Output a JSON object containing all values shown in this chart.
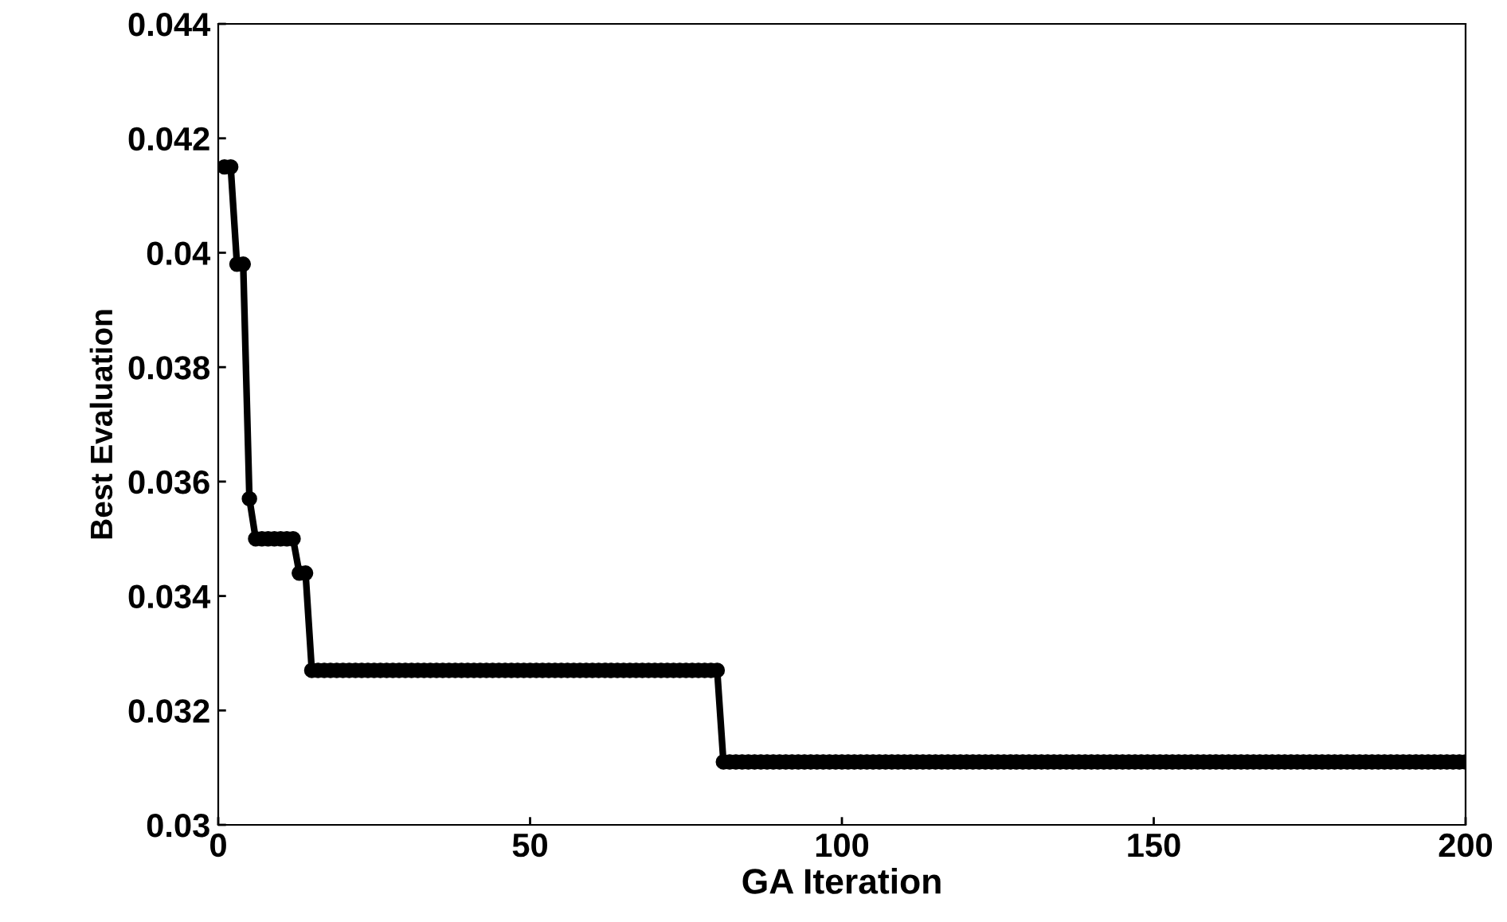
{
  "chart_data": {
    "type": "line",
    "xlabel": "GA Iteration",
    "ylabel": "Best Evaluation",
    "xlim": [
      0,
      200
    ],
    "xticks": [
      0,
      50,
      100,
      150,
      200
    ],
    "ylim": [
      0.03,
      0.044
    ],
    "yticks": [
      0.03,
      0.032,
      0.034,
      0.036,
      0.038,
      0.04,
      0.042,
      0.044
    ],
    "grid": false,
    "legend": false,
    "marker": "circle",
    "line_style": "solid",
    "series": [
      {
        "color": "#000000",
        "x": [
          1,
          2,
          3,
          4,
          5,
          6,
          7,
          8,
          9,
          10,
          11,
          12,
          13,
          14,
          15,
          16,
          17,
          18,
          19,
          20,
          21,
          22,
          23,
          24,
          25,
          26,
          27,
          28,
          29,
          30,
          31,
          32,
          33,
          34,
          35,
          36,
          37,
          38,
          39,
          40,
          41,
          42,
          43,
          44,
          45,
          46,
          47,
          48,
          49,
          50,
          51,
          52,
          53,
          54,
          55,
          56,
          57,
          58,
          59,
          60,
          61,
          62,
          63,
          64,
          65,
          66,
          67,
          68,
          69,
          70,
          71,
          72,
          73,
          74,
          75,
          76,
          77,
          78,
          79,
          80,
          81,
          82,
          83,
          84,
          85,
          86,
          87,
          88,
          89,
          90,
          91,
          92,
          93,
          94,
          95,
          96,
          97,
          98,
          99,
          100,
          101,
          102,
          103,
          104,
          105,
          106,
          107,
          108,
          109,
          110,
          111,
          112,
          113,
          114,
          115,
          116,
          117,
          118,
          119,
          120,
          121,
          122,
          123,
          124,
          125,
          126,
          127,
          128,
          129,
          130,
          131,
          132,
          133,
          134,
          135,
          136,
          137,
          138,
          139,
          140,
          141,
          142,
          143,
          144,
          145,
          146,
          147,
          148,
          149,
          150,
          151,
          152,
          153,
          154,
          155,
          156,
          157,
          158,
          159,
          160,
          161,
          162,
          163,
          164,
          165,
          166,
          167,
          168,
          169,
          170,
          171,
          172,
          173,
          174,
          175,
          176,
          177,
          178,
          179,
          180,
          181,
          182,
          183,
          184,
          185,
          186,
          187,
          188,
          189,
          190,
          191,
          192,
          193,
          194,
          195,
          196,
          197,
          198,
          199,
          200
        ],
        "values": [
          0.0415,
          0.0415,
          0.0398,
          0.0398,
          0.0357,
          0.035,
          0.035,
          0.035,
          0.035,
          0.035,
          0.035,
          0.035,
          0.0344,
          0.0344,
          0.0327,
          0.0327,
          0.0327,
          0.0327,
          0.0327,
          0.0327,
          0.0327,
          0.0327,
          0.0327,
          0.0327,
          0.0327,
          0.0327,
          0.0327,
          0.0327,
          0.0327,
          0.0327,
          0.0327,
          0.0327,
          0.0327,
          0.0327,
          0.0327,
          0.0327,
          0.0327,
          0.0327,
          0.0327,
          0.0327,
          0.0327,
          0.0327,
          0.0327,
          0.0327,
          0.0327,
          0.0327,
          0.0327,
          0.0327,
          0.0327,
          0.0327,
          0.0327,
          0.0327,
          0.0327,
          0.0327,
          0.0327,
          0.0327,
          0.0327,
          0.0327,
          0.0327,
          0.0327,
          0.0327,
          0.0327,
          0.0327,
          0.0327,
          0.0327,
          0.0327,
          0.0327,
          0.0327,
          0.0327,
          0.0327,
          0.0327,
          0.0327,
          0.0327,
          0.0327,
          0.0327,
          0.0327,
          0.0327,
          0.0327,
          0.0327,
          0.0327,
          0.0311,
          0.0311,
          0.0311,
          0.0311,
          0.0311,
          0.0311,
          0.0311,
          0.0311,
          0.0311,
          0.0311,
          0.0311,
          0.0311,
          0.0311,
          0.0311,
          0.0311,
          0.0311,
          0.0311,
          0.0311,
          0.0311,
          0.0311,
          0.0311,
          0.0311,
          0.0311,
          0.0311,
          0.0311,
          0.0311,
          0.0311,
          0.0311,
          0.0311,
          0.0311,
          0.0311,
          0.0311,
          0.0311,
          0.0311,
          0.0311,
          0.0311,
          0.0311,
          0.0311,
          0.0311,
          0.0311,
          0.0311,
          0.0311,
          0.0311,
          0.0311,
          0.0311,
          0.0311,
          0.0311,
          0.0311,
          0.0311,
          0.0311,
          0.0311,
          0.0311,
          0.0311,
          0.0311,
          0.0311,
          0.0311,
          0.0311,
          0.0311,
          0.0311,
          0.0311,
          0.0311,
          0.0311,
          0.0311,
          0.0311,
          0.0311,
          0.0311,
          0.0311,
          0.0311,
          0.0311,
          0.0311,
          0.0311,
          0.0311,
          0.0311,
          0.0311,
          0.0311,
          0.0311,
          0.0311,
          0.0311,
          0.0311,
          0.0311,
          0.0311,
          0.0311,
          0.0311,
          0.0311,
          0.0311,
          0.0311,
          0.0311,
          0.0311,
          0.0311,
          0.0311,
          0.0311,
          0.0311,
          0.0311,
          0.0311,
          0.0311,
          0.0311,
          0.0311,
          0.0311,
          0.0311,
          0.0311,
          0.0311,
          0.0311,
          0.0311,
          0.0311,
          0.0311,
          0.0311,
          0.0311,
          0.0311,
          0.0311,
          0.0311,
          0.0311,
          0.0311,
          0.0311,
          0.0311,
          0.0311,
          0.0311,
          0.0311,
          0.0311,
          0.0311,
          0.0311
        ]
      }
    ]
  }
}
